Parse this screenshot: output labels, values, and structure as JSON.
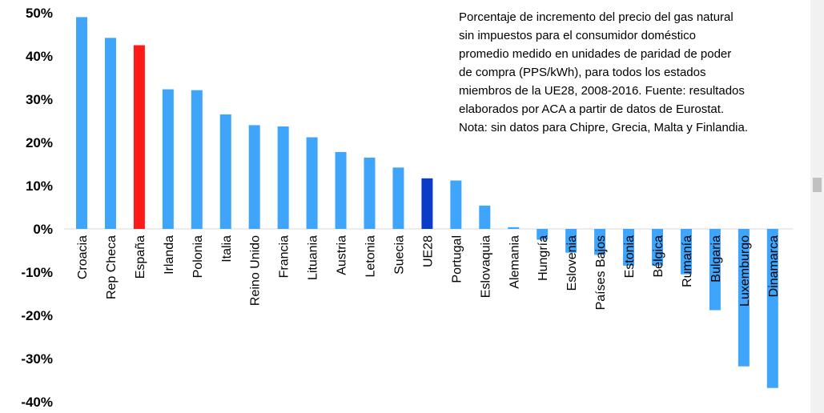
{
  "chart_data": {
    "type": "bar",
    "title": "",
    "xlabel": "",
    "ylabel": "",
    "ylim": [
      -40,
      50
    ],
    "yticks": [
      50,
      40,
      30,
      20,
      10,
      0,
      -10,
      -20,
      -30,
      -40
    ],
    "ytick_labels": [
      "50%",
      "40%",
      "30%",
      "20%",
      "10%",
      "0%",
      "-10%",
      "-20%",
      "-30%",
      "-40%"
    ],
    "categories": [
      "Croacia",
      "Rep Checa",
      "España",
      "Irlanda",
      "Polonia",
      "Italia",
      "Reino Unido",
      "Francia",
      "Lituania",
      "Austria",
      "Letonia",
      "Suecia",
      "UE28",
      "Portugal",
      "Eslovaquia",
      "Alemania",
      "Hungría",
      "Eslovenia",
      "Países Bajos",
      "Estonia",
      "Bélgica",
      "Rumanía",
      "Bulgaria",
      "Luxemburgo",
      "Dinamarca"
    ],
    "values": [
      49,
      44.2,
      42.5,
      32.3,
      32.1,
      26.5,
      24,
      23.7,
      21.2,
      17.8,
      16.5,
      14.2,
      11.7,
      11.2,
      5.4,
      0.4,
      -2.5,
      -5.5,
      -6,
      -8.5,
      -8.5,
      -10.5,
      -18.8,
      -31.8,
      -36.8
    ],
    "colors": [
      "#3ea5fa",
      "#3ea5fa",
      "#ff1a1a",
      "#3ea5fa",
      "#3ea5fa",
      "#3ea5fa",
      "#3ea5fa",
      "#3ea5fa",
      "#3ea5fa",
      "#3ea5fa",
      "#3ea5fa",
      "#3ea5fa",
      "#0a3cc8",
      "#3ea5fa",
      "#3ea5fa",
      "#3ea5fa",
      "#3ea5fa",
      "#3ea5fa",
      "#3ea5fa",
      "#3ea5fa",
      "#3ea5fa",
      "#3ea5fa",
      "#3ea5fa",
      "#3ea5fa",
      "#3ea5fa"
    ],
    "grid": false,
    "legend": "none",
    "annotation": {
      "position": "top-right",
      "lines": [
        "Porcentaje de incremento del precio del gas natural",
        "sin impuestos para el consumidor doméstico",
        "promedio medido en unidades de paridad de poder",
        "de compra (PPS/kWh), para todos los estados",
        "miembros de la UE28, 2008-2016. Fuente: resultados",
        "elaborados por ACA a partir de datos de Eurostat.",
        "Nota: sin datos para Chipre, Grecia, Malta y Finlandia."
      ]
    }
  }
}
